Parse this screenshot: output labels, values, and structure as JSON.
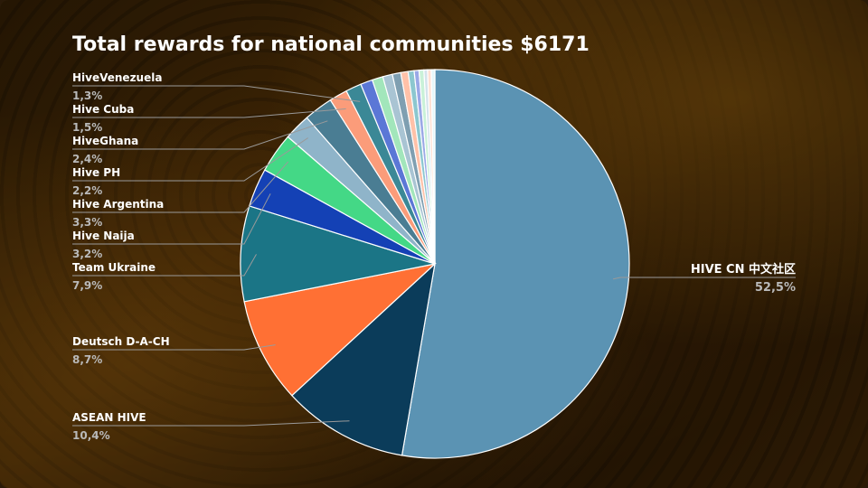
{
  "chart_data": {
    "type": "pie",
    "title": "Total rewards for national communities $6171",
    "slices": [
      {
        "label": "HIVE CN 中文社区",
        "value": 52.5,
        "value_label": "52,5%",
        "color": "#5b93b3"
      },
      {
        "label": "ASEAN HIVE",
        "value": 10.4,
        "value_label": "10,4%",
        "color": "#0b3c5a"
      },
      {
        "label": "Deutsch D-A-CH",
        "value": 8.7,
        "value_label": "8,7%",
        "color": "#ff7034"
      },
      {
        "label": "Team Ukraine",
        "value": 7.9,
        "value_label": "7,9%",
        "color": "#1b7586"
      },
      {
        "label": "Hive Naija",
        "value": 3.2,
        "value_label": "3,2%",
        "color": "#1441b5"
      },
      {
        "label": "Hive Argentina",
        "value": 3.3,
        "value_label": "3,3%",
        "color": "#44d886"
      },
      {
        "label": "Hive PH",
        "value": 2.2,
        "value_label": "2,2%",
        "color": "#8fb4c9"
      },
      {
        "label": "HiveGhana",
        "value": 2.4,
        "value_label": "2,4%",
        "color": "#4a7d93"
      },
      {
        "label": "Hive Cuba",
        "value": 1.5,
        "value_label": "1,5%",
        "color": "#fb9c7a"
      },
      {
        "label": "HiveVenezuela",
        "value": 1.3,
        "value_label": "1,3%",
        "color": "#3b8896"
      },
      {
        "label": "",
        "value": 1.0,
        "color": "#5b77d6"
      },
      {
        "label": "",
        "value": 0.9,
        "color": "#a2e6bb"
      },
      {
        "label": "",
        "value": 0.8,
        "color": "#a9c4d3"
      },
      {
        "label": "",
        "value": 0.7,
        "color": "#7f9fb1"
      },
      {
        "label": "",
        "value": 0.6,
        "color": "#ffc1a8"
      },
      {
        "label": "",
        "value": 0.5,
        "color": "#8cc7cf"
      },
      {
        "label": "",
        "value": 0.4,
        "color": "#9aa8e6"
      },
      {
        "label": "",
        "value": 0.4,
        "color": "#c9f1d8"
      },
      {
        "label": "",
        "value": 0.3,
        "color": "#d4e3ec"
      },
      {
        "label": "",
        "value": 0.3,
        "color": "#ffe0d2"
      },
      {
        "label": "",
        "value": 0.3,
        "color": "#e6f7fa"
      }
    ]
  }
}
